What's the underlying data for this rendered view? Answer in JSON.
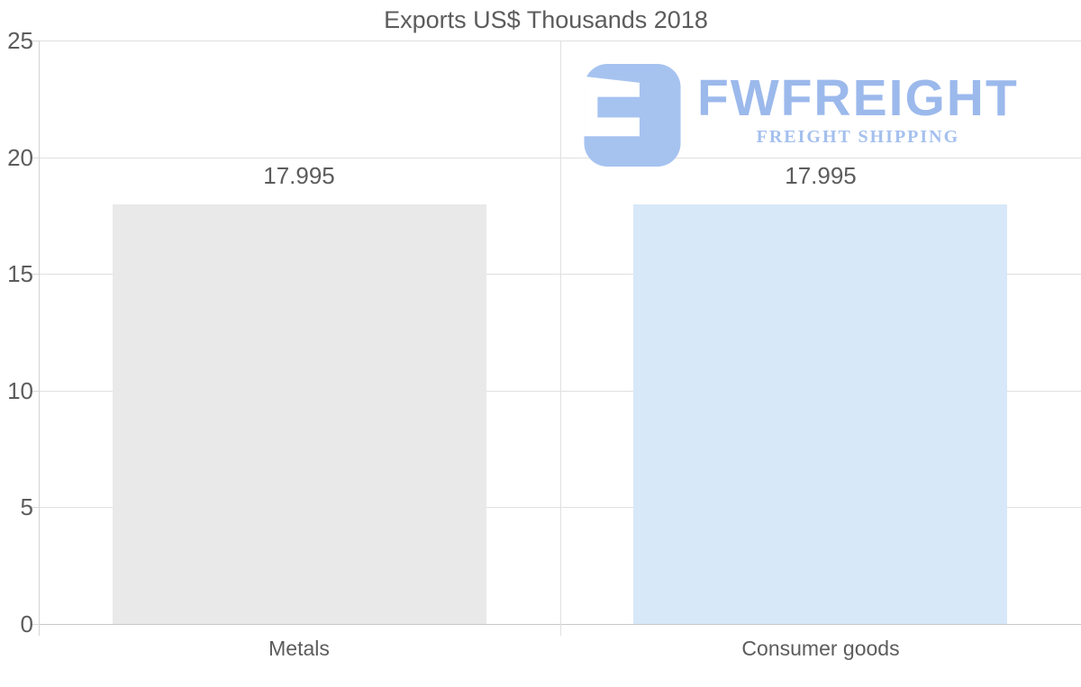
{
  "chart_data": {
    "type": "bar",
    "title": "Exports US$ Thousands 2018",
    "categories": [
      "Metals",
      "Consumer goods"
    ],
    "values": [
      17.995,
      17.995
    ],
    "value_labels": [
      "17.995",
      "17.995"
    ],
    "bar_colors": [
      "#e9e9e9",
      "#d7e8f8"
    ],
    "ylim": [
      0,
      25
    ],
    "yticks": [
      0,
      5,
      10,
      15,
      20,
      25
    ],
    "xlabel": "",
    "ylabel": "",
    "grid": true,
    "legend": false
  },
  "logo": {
    "brand": "FWFREIGHT",
    "tagline": "FREIGHT SHIPPING",
    "icon": "fwfreight-monogram-icon",
    "colors": {
      "icon": "#a6c3f0",
      "wordmark": "#9cb9ec",
      "tagline": "#a4c0ee"
    }
  },
  "colors": {
    "background": "#ffffff",
    "text": "#5c5c5c",
    "gridline": "#e0e0e0",
    "zero_line": "#c9c9c9",
    "bar_metals": "#e9e9e9",
    "bar_consumer_goods": "#d7e8f8"
  }
}
